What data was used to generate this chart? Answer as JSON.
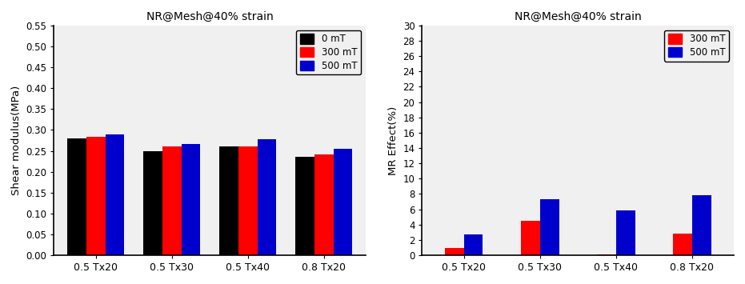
{
  "left_title": "NR@Mesh@40% strain",
  "right_title": "NR@Mesh@40% strain",
  "categories": [
    "0.5 Tx20",
    "0.5 Tx30",
    "0.5 Tx40",
    "0.8 Tx20"
  ],
  "left_ylabel": "Shear modulus(MPa)",
  "right_ylabel": "MR Effect(%)",
  "left_ylim": [
    0,
    0.55
  ],
  "right_ylim": [
    0,
    30
  ],
  "left_yticks": [
    0.0,
    0.05,
    0.1,
    0.15,
    0.2,
    0.25,
    0.3,
    0.35,
    0.4,
    0.45,
    0.5,
    0.55
  ],
  "right_yticks": [
    0,
    2,
    4,
    6,
    8,
    10,
    12,
    14,
    16,
    18,
    20,
    22,
    24,
    26,
    28,
    30
  ],
  "left_data": {
    "0mT": [
      0.28,
      0.25,
      0.26,
      0.235
    ],
    "300mT": [
      0.283,
      0.261,
      0.261,
      0.241
    ],
    "500mT": [
      0.289,
      0.267,
      0.278,
      0.254
    ]
  },
  "right_data": {
    "300mT": [
      1.0,
      4.5,
      0.1,
      2.8
    ],
    "500mT": [
      2.7,
      7.3,
      5.85,
      7.85
    ]
  },
  "colors_left": {
    "0mT": "#000000",
    "300mT": "#ff0000",
    "500mT": "#0000cd"
  },
  "colors_right": {
    "300mT": "#ff0000",
    "500mT": "#0000cd"
  },
  "bar_width": 0.25,
  "background_color": "#ffffff",
  "axes_bg": "#f0f0f0"
}
